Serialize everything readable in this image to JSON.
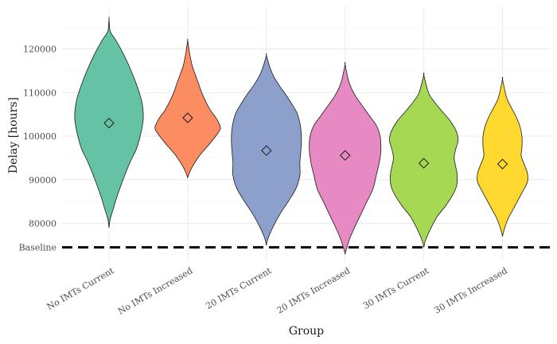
{
  "chart_data": {
    "type": "violin",
    "xlabel": "Group",
    "ylabel": "Delay [hours]",
    "ylim": [
      72000,
      127000
    ],
    "y_ticks": [
      80000,
      90000,
      100000,
      110000,
      120000
    ],
    "baseline": {
      "label": "Baseline",
      "value": 74500
    },
    "grid": true,
    "categories": [
      "No IMTs Current",
      "No IMTs Increased",
      "20 IMTs Current",
      "20 IMTs Increased",
      "30 IMTs Current",
      "30 IMTs Increased"
    ],
    "colors": [
      "#66c2a5",
      "#fc8d62",
      "#8da0cb",
      "#e78ac3",
      "#a6d854",
      "#ffd92f"
    ],
    "means": [
      103000,
      104200,
      96700,
      95600,
      93800,
      93600
    ],
    "density_profiles": [
      [
        [
          79000,
          0
        ],
        [
          81000,
          1.5
        ],
        [
          83000,
          5
        ],
        [
          86000,
          10
        ],
        [
          90000,
          18
        ],
        [
          94000,
          27
        ],
        [
          97000,
          35
        ],
        [
          100000,
          40
        ],
        [
          104000,
          44
        ],
        [
          108000,
          42
        ],
        [
          112000,
          35
        ],
        [
          116000,
          26
        ],
        [
          119000,
          18
        ],
        [
          121000,
          12
        ],
        [
          122500,
          7
        ],
        [
          123500,
          3
        ],
        [
          124500,
          1
        ],
        [
          127000,
          0
        ]
      ],
      [
        [
          90500,
          0
        ],
        [
          91500,
          2
        ],
        [
          93000,
          6
        ],
        [
          95500,
          15
        ],
        [
          98000,
          27
        ],
        [
          100500,
          38
        ],
        [
          102000,
          42
        ],
        [
          104000,
          37
        ],
        [
          106000,
          29
        ],
        [
          108000,
          23
        ],
        [
          110000,
          18
        ],
        [
          112000,
          14
        ],
        [
          114000,
          10
        ],
        [
          116000,
          6
        ],
        [
          118000,
          3.5
        ],
        [
          119500,
          2
        ],
        [
          122000,
          0
        ]
      ],
      [
        [
          75000,
          0
        ],
        [
          76500,
          2
        ],
        [
          79000,
          8
        ],
        [
          82000,
          17
        ],
        [
          85000,
          28
        ],
        [
          88000,
          38
        ],
        [
          91000,
          43
        ],
        [
          94000,
          43
        ],
        [
          96000,
          44
        ],
        [
          99000,
          45
        ],
        [
          102000,
          44
        ],
        [
          105000,
          40
        ],
        [
          107000,
          34
        ],
        [
          109500,
          25
        ],
        [
          111500,
          17
        ],
        [
          113500,
          10
        ],
        [
          115500,
          5
        ],
        [
          118500,
          0
        ]
      ],
      [
        [
          73000,
          0
        ],
        [
          74000,
          1.5
        ],
        [
          76500,
          6
        ],
        [
          79000,
          12
        ],
        [
          82000,
          20
        ],
        [
          85000,
          28
        ],
        [
          88000,
          36
        ],
        [
          91000,
          40
        ],
        [
          94000,
          44
        ],
        [
          97000,
          46
        ],
        [
          100000,
          45
        ],
        [
          102500,
          40
        ],
        [
          104500,
          32
        ],
        [
          107000,
          22
        ],
        [
          109000,
          14
        ],
        [
          111000,
          8
        ],
        [
          113000,
          4
        ],
        [
          116500,
          0
        ]
      ],
      [
        [
          74500,
          0
        ],
        [
          76000,
          2
        ],
        [
          78500,
          8
        ],
        [
          81500,
          17
        ],
        [
          84000,
          28
        ],
        [
          86500,
          37
        ],
        [
          88500,
          42
        ],
        [
          91000,
          43
        ],
        [
          93000,
          41
        ],
        [
          95000,
          39
        ],
        [
          97000,
          41
        ],
        [
          99000,
          44
        ],
        [
          101000,
          42
        ],
        [
          103500,
          34
        ],
        [
          106000,
          22
        ],
        [
          108000,
          13
        ],
        [
          110000,
          6
        ],
        [
          114000,
          0
        ]
      ],
      [
        [
          77000,
          0
        ],
        [
          78500,
          2
        ],
        [
          81000,
          7
        ],
        [
          84000,
          16
        ],
        [
          87000,
          25
        ],
        [
          89500,
          32
        ],
        [
          91500,
          32
        ],
        [
          93500,
          28
        ],
        [
          95500,
          24
        ],
        [
          97500,
          25
        ],
        [
          100000,
          25
        ],
        [
          102500,
          22
        ],
        [
          105000,
          16
        ],
        [
          107000,
          10
        ],
        [
          109000,
          5
        ],
        [
          113000,
          0
        ]
      ]
    ]
  }
}
